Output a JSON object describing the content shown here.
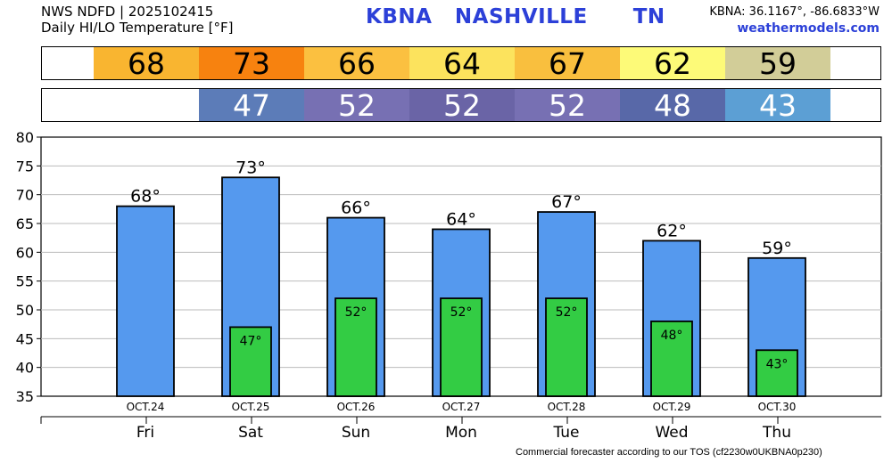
{
  "header": {
    "line1": "NWS NDFD | 2025102415",
    "line2": "Daily HI/LO Temperature [°F]",
    "title": "KBNA   NASHVILLE      TN",
    "coords": "KBNA: 36.1167°, -86.6833°W",
    "site": "weathermodels.com"
  },
  "footer": "Commercial forecaster according to our TOS (cf2230w0UKBNA0p230)",
  "hi_strip": [
    {
      "value": "68",
      "color": "#f9b530"
    },
    {
      "value": "73",
      "color": "#f7820f"
    },
    {
      "value": "66",
      "color": "#fbc040"
    },
    {
      "value": "64",
      "color": "#fce35d"
    },
    {
      "value": "67",
      "color": "#f9bf3e"
    },
    {
      "value": "62",
      "color": "#fdfa78"
    },
    {
      "value": "59",
      "color": "#d2cd98"
    }
  ],
  "lo_strip": [
    {
      "value": "",
      "color": "#ffffff"
    },
    {
      "value": "47",
      "color": "#5c7cb8"
    },
    {
      "value": "52",
      "color": "#7770b3"
    },
    {
      "value": "52",
      "color": "#6a64a6"
    },
    {
      "value": "52",
      "color": "#7770b3"
    },
    {
      "value": "48",
      "color": "#5868a8"
    },
    {
      "value": "43",
      "color": "#5c9fd4"
    }
  ],
  "colors": {
    "hi_bar": "#5599ee",
    "lo_bar": "#33cc44",
    "title": "#2c40d8"
  },
  "chart_data": {
    "type": "bar",
    "categories": [
      "Fri",
      "Sat",
      "Sun",
      "Mon",
      "Tue",
      "Wed",
      "Thu"
    ],
    "dates": [
      "OCT.24",
      "OCT.25",
      "OCT.26",
      "OCT.27",
      "OCT.28",
      "OCT.29",
      "OCT.30"
    ],
    "series": [
      {
        "values": [
          68,
          73,
          66,
          64,
          67,
          62,
          59
        ]
      },
      {
        "values": [
          null,
          47,
          52,
          52,
          52,
          48,
          43
        ]
      }
    ],
    "hi_labels": [
      "68°",
      "73°",
      "66°",
      "64°",
      "67°",
      "62°",
      "59°"
    ],
    "lo_labels": [
      "",
      "47°",
      "52°",
      "52°",
      "52°",
      "48°",
      "43°"
    ],
    "yticks": [
      "80",
      "75",
      "70",
      "65",
      "60",
      "55",
      "50",
      "45",
      "40",
      "35"
    ],
    "ylim": [
      35,
      80
    ],
    "grid": true,
    "xlabel": "",
    "ylabel": ""
  }
}
